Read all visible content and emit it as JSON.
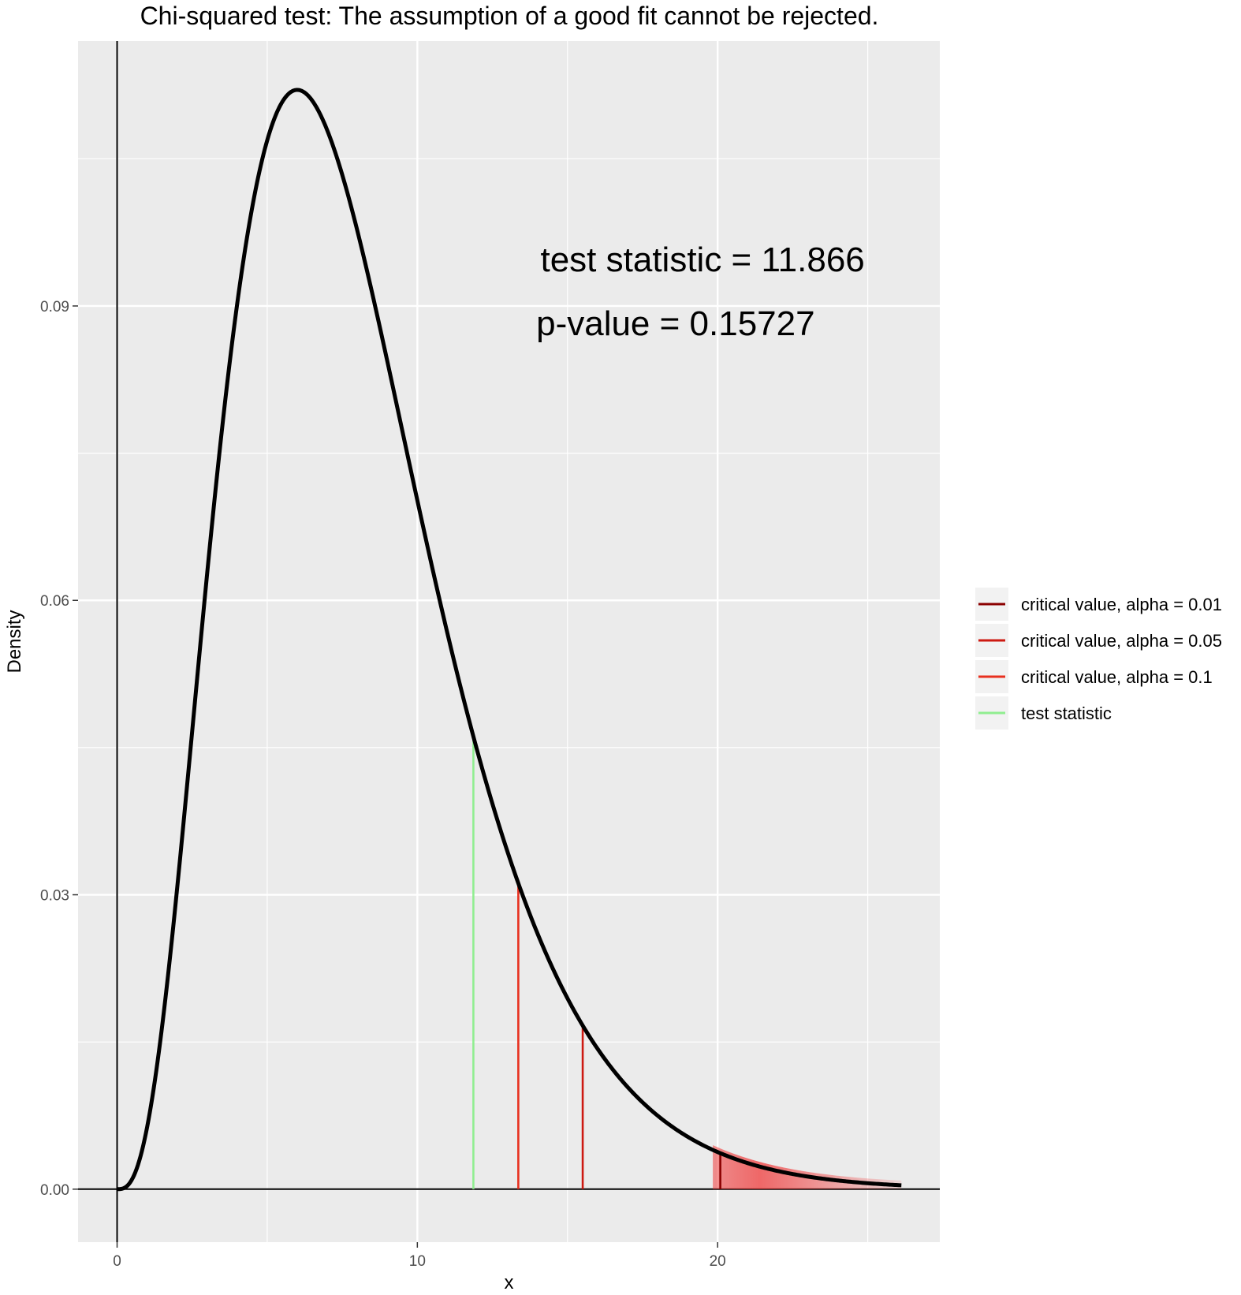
{
  "chart_data": {
    "type": "line",
    "title": "Chi-squared test:  The assumption of a good fit cannot be rejected.",
    "xlabel": "x",
    "ylabel": "Density",
    "xlim": [
      -1.3,
      27.4
    ],
    "ylim": [
      -0.0054,
      0.117
    ],
    "x_ticks": [
      0,
      10,
      20
    ],
    "x_tick_labels": [
      "0",
      "10",
      "20"
    ],
    "y_ticks": [
      0.0,
      0.03,
      0.06,
      0.09
    ],
    "y_tick_labels": [
      "0.00",
      "0.03",
      "0.06",
      "0.09"
    ],
    "grid": true,
    "legend_position": "right",
    "distribution": "chi-squared",
    "degrees_of_freedom": 8,
    "x_range": [
      0,
      26.12
    ],
    "series": [
      {
        "name": "critical value, alpha = 0.01",
        "x": 20.09,
        "color": "#8b0000"
      },
      {
        "name": "critical value, alpha = 0.05",
        "x": 15.507,
        "color": "#cd1a12"
      },
      {
        "name": "critical value, alpha = 0.1",
        "x": 13.362,
        "color": "#e8301f"
      },
      {
        "name": "test statistic",
        "x": 11.866,
        "color": "#90ee90"
      }
    ],
    "annotations": [
      {
        "text": "test statistic =  11.866",
        "x": 19.5,
        "y": 0.0948
      },
      {
        "text": "p-value  =  0.15727",
        "x": 18.6,
        "y": 0.0883
      }
    ],
    "shaded_region": {
      "from": 20.09,
      "to": 26.12,
      "color": "#f03c3c"
    }
  }
}
